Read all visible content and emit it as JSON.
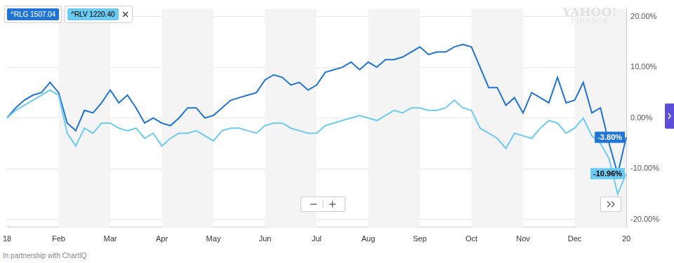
{
  "chart_data": {
    "type": "line",
    "watermark": [
      "YAHOO!",
      "FINANCE"
    ],
    "source": "In partnership with ChartIQ",
    "legend": "top-left",
    "grid": true,
    "categories": [
      "18",
      null,
      null,
      null,
      null,
      null,
      "Feb",
      null,
      null,
      null,
      null,
      null,
      "Mar",
      null,
      null,
      null,
      null,
      null,
      "Apr",
      null,
      null,
      null,
      null,
      null,
      "May",
      null,
      null,
      null,
      null,
      null,
      "Jun",
      null,
      null,
      null,
      null,
      null,
      "Jul",
      null,
      null,
      null,
      null,
      null,
      "Aug",
      null,
      null,
      null,
      null,
      null,
      "Sep",
      null,
      null,
      null,
      null,
      null,
      "Oct",
      null,
      null,
      null,
      null,
      null,
      "Nov",
      null,
      null,
      null,
      null,
      null,
      "Dec",
      null,
      null,
      null,
      null,
      null,
      "20"
    ],
    "ylim": [
      -21.5,
      21.5
    ],
    "yticks": [
      {
        "value": 20,
        "label": "20.00%"
      },
      {
        "value": 10,
        "label": "10.00%"
      },
      {
        "value": 0,
        "label": "0.00%"
      },
      {
        "value": -10,
        "label": "-10.00%"
      },
      {
        "value": -20,
        "label": "-20.00%"
      }
    ],
    "series": [
      {
        "name": "^RLG",
        "color": "#1f74d6",
        "marker": "none",
        "line_style": "solid",
        "quote": {
          "value": 1507.04,
          "label": "1507.04"
        },
        "last_value_label": "-3.80%",
        "values": [
          0,
          2,
          3.5,
          4.5,
          5,
          7,
          5,
          -1,
          -2.5,
          1.5,
          1,
          3,
          5.5,
          3,
          4.5,
          2,
          -1,
          0,
          -1,
          -1.5,
          0,
          2,
          2,
          0,
          0.5,
          2,
          3.5,
          4,
          4.5,
          5,
          7.5,
          8.5,
          8,
          6.5,
          7,
          5.5,
          6.5,
          9,
          9.5,
          10,
          11,
          9.5,
          11,
          10,
          11.5,
          11.5,
          12,
          13,
          14,
          12.5,
          13,
          13,
          14,
          14.5,
          14,
          10,
          6,
          6,
          2.5,
          4,
          1,
          5,
          4,
          3,
          8,
          3,
          3.5,
          7,
          1,
          2,
          -5,
          -11,
          -3.8
        ]
      },
      {
        "name": "^RLV",
        "color": "#6ccbf2",
        "marker": "none",
        "line_style": "solid",
        "quote": {
          "value": 1220.4,
          "label": "1220.40"
        },
        "last_value_label": "-10.96%",
        "values": [
          0,
          1.5,
          2.5,
          3.5,
          4.5,
          5.5,
          4.5,
          -3,
          -5.5,
          -2,
          -3,
          -1,
          -1,
          -2,
          -2.5,
          -2,
          -4,
          -3,
          -5.5,
          -4,
          -3,
          -3,
          -2.5,
          -3.5,
          -4.5,
          -2.5,
          -2,
          -2,
          -2.5,
          -3,
          -1.5,
          -1,
          -1,
          -2,
          -2.5,
          -3,
          -3,
          -1.5,
          -1,
          -0.5,
          0,
          0.5,
          0,
          -0.5,
          0.5,
          1.5,
          1,
          2,
          2,
          1.5,
          1.5,
          2,
          3.5,
          2,
          1.5,
          -2,
          -3,
          -4,
          -6,
          -3,
          -3.5,
          -4,
          -2,
          -0.5,
          -1,
          -3,
          -2,
          0,
          -3.5,
          -5,
          -8,
          -15,
          -10.96
        ]
      }
    ]
  }
}
